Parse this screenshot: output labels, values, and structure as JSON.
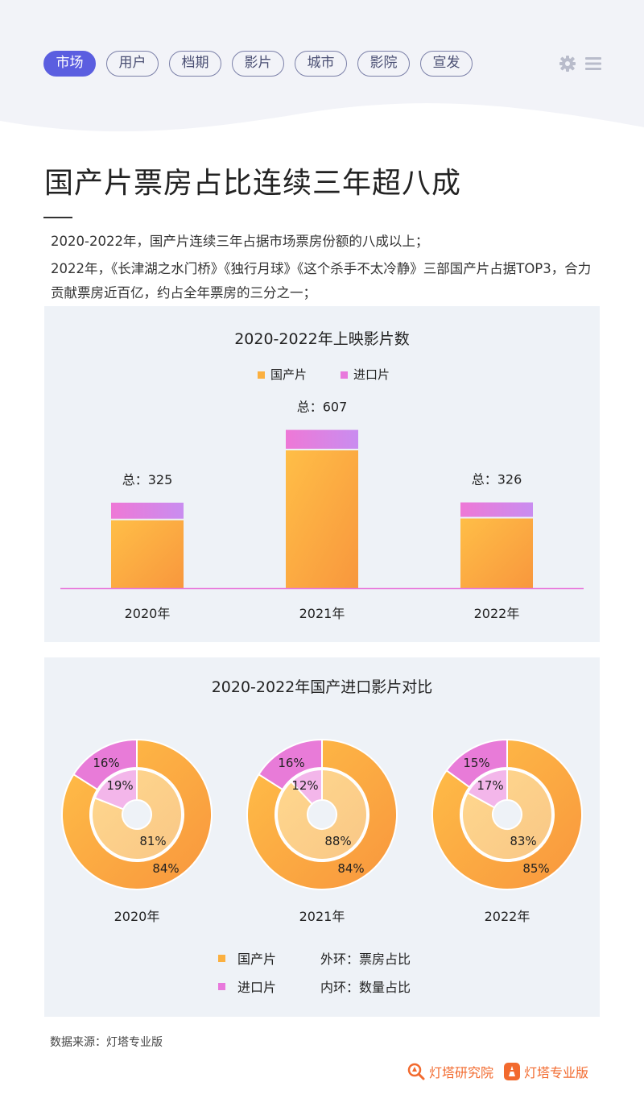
{
  "nav": {
    "tabs": [
      {
        "label": "市场",
        "active": true
      },
      {
        "label": "用户",
        "active": false
      },
      {
        "label": "档期",
        "active": false
      },
      {
        "label": "影片",
        "active": false
      },
      {
        "label": "城市",
        "active": false
      },
      {
        "label": "影院",
        "active": false
      },
      {
        "label": "宣发",
        "active": false
      }
    ],
    "icons": [
      "gear-icon",
      "menu-icon"
    ]
  },
  "page": {
    "title": "国产片票房占比连续三年超八成",
    "paragraph1": "2020-2022年，国产片连续三年占据市场票房份额的八成以上；",
    "paragraph2": "2022年，《长津湖之水门桥》《独行月球》《这个杀手不太冷静》三部国产片占据TOP3，合力贡献票房近百亿，约占全年票房的三分之一；"
  },
  "colors": {
    "domestic": "#fbb040",
    "imported": "#e879dc",
    "accent": "#5b5ee0",
    "brand": "#f26a2e"
  },
  "chart_data": [
    {
      "type": "bar",
      "title": "2020-2022年上映影片数",
      "categories": [
        "2020年",
        "2021年",
        "2022年"
      ],
      "totals": [
        325,
        607,
        326
      ],
      "total_label_prefix": "总：",
      "legend": [
        "国产片",
        "进口片"
      ],
      "legend_position": "top-center",
      "series": [
        {
          "name": "国产片",
          "values": [
            263,
            534,
            270
          ]
        },
        {
          "name": "进口片",
          "values": [
            62,
            73,
            56
          ]
        }
      ],
      "grid": false
    },
    {
      "type": "pie",
      "title": "2020-2022年国产进口影片对比",
      "categories": [
        "2020年",
        "2021年",
        "2022年"
      ],
      "outer_ring": {
        "label": "外环：票房占比",
        "domestic": [
          84,
          84,
          85
        ],
        "imported": [
          16,
          16,
          15
        ]
      },
      "inner_ring": {
        "label": "内环：数量占比",
        "domestic": [
          81,
          88,
          83
        ],
        "imported": [
          19,
          12,
          17
        ]
      },
      "legend": [
        "国产片",
        "进口片"
      ],
      "unit": "%"
    }
  ],
  "footer": {
    "source": "数据来源：灯塔专业版",
    "brand1": "灯塔研究院",
    "brand2": "灯塔专业版"
  }
}
